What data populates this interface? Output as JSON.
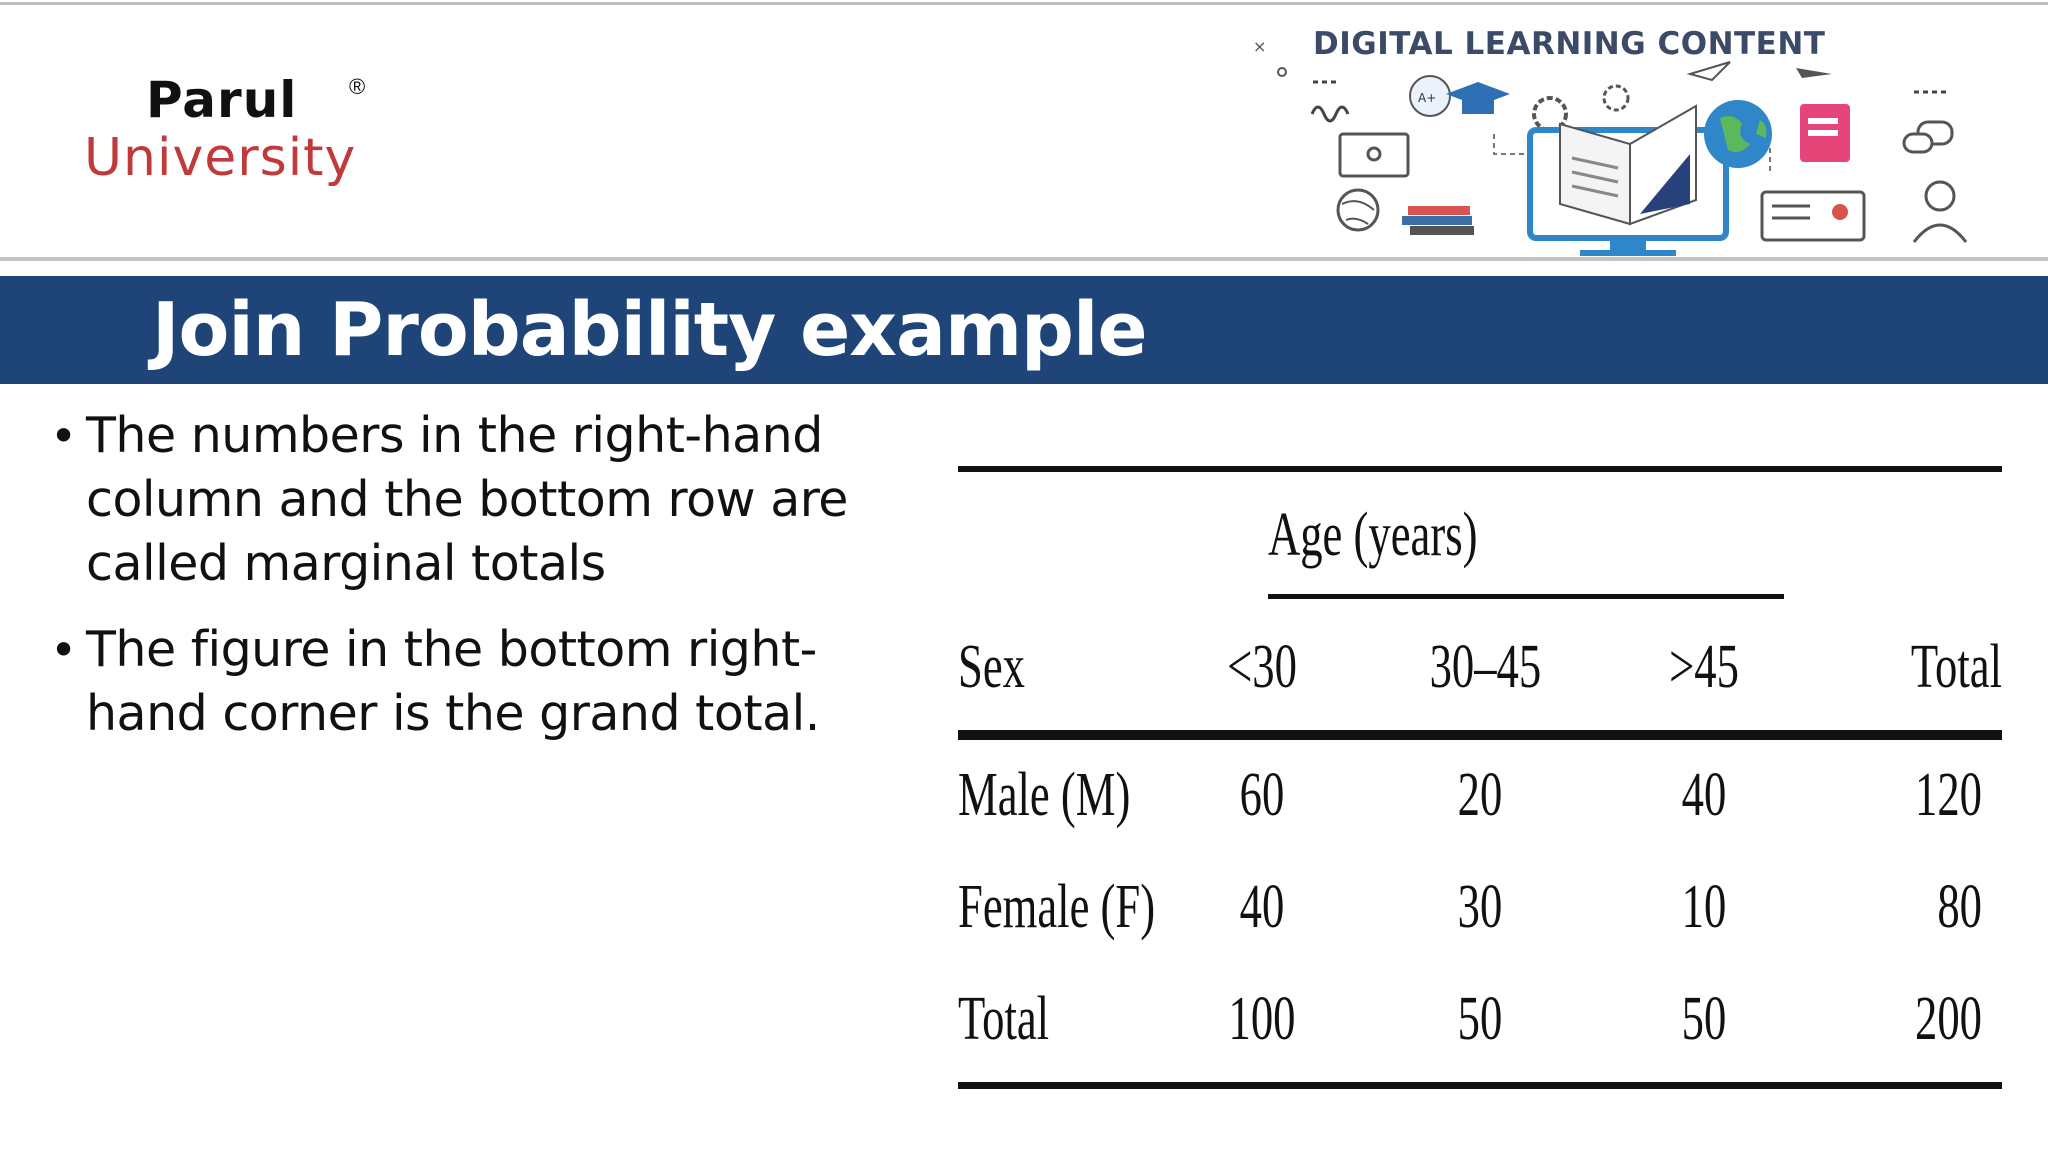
{
  "header": {
    "logo": {
      "name": "Parul",
      "reg": "®",
      "sub": "University"
    },
    "banner_title": "DIGITAL LEARNING CONTENT",
    "colors": {
      "logo_red": "#c0393b",
      "banner_text": "#3b4a66"
    }
  },
  "slide": {
    "title": "Join Probability example",
    "title_bar_color": "#1f4477",
    "bullets": [
      "The numbers in the right-hand column and the bottom row are called marginal totals",
      "The figure in the bottom right-hand corner is the grand total."
    ]
  },
  "table": {
    "group_header": "Age (years)",
    "columns": [
      "Sex",
      "<30",
      "30–45",
      ">45",
      "Total"
    ],
    "rows": [
      [
        "Male (M)",
        "60",
        "20",
        "40",
        "120"
      ],
      [
        "Female (F)",
        "40",
        "30",
        "10",
        "80"
      ],
      [
        "Total",
        "100",
        "50",
        "50",
        "200"
      ]
    ]
  }
}
